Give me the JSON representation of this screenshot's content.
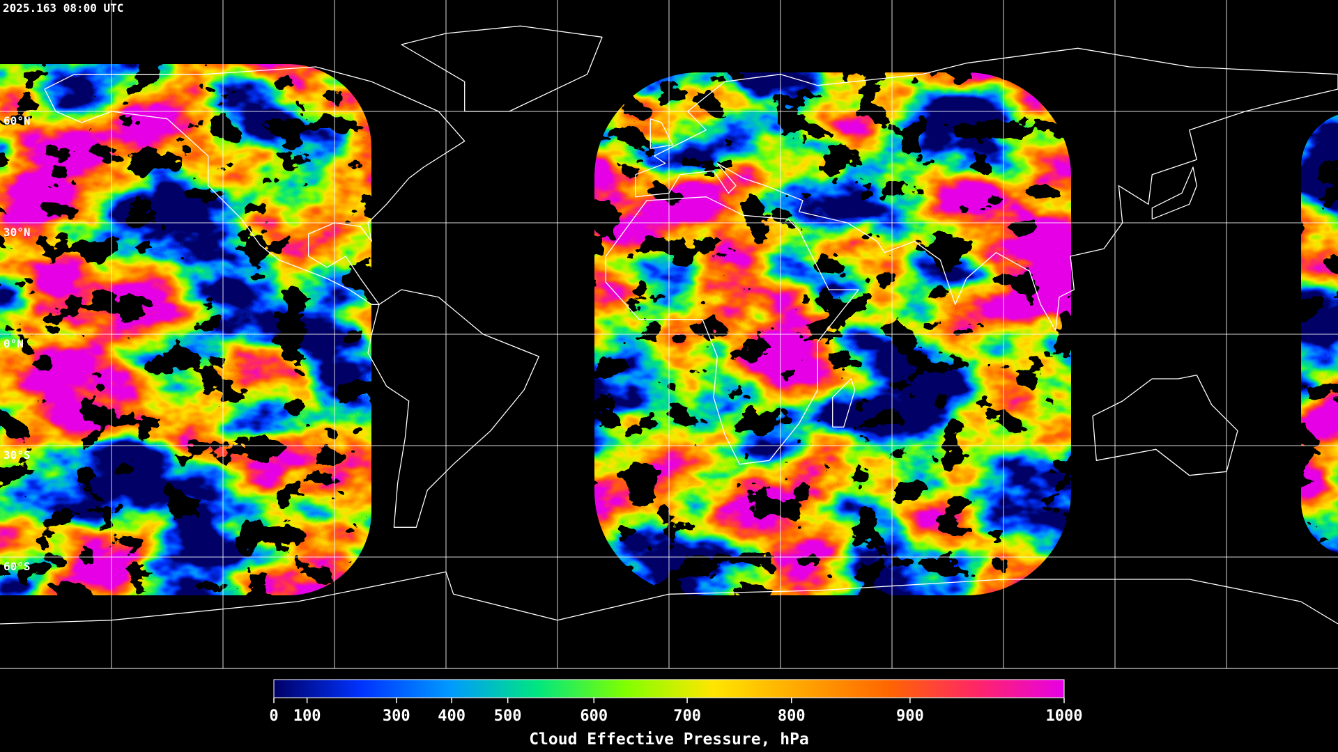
{
  "title": "2025.163 08:00 UTC",
  "lat_labels": [
    "60°N",
    "30°N",
    "0°N",
    "30°S",
    "60°S"
  ],
  "colorbar": {
    "label": "Cloud Effective Pressure, hPa",
    "ticks": [
      0,
      100,
      300,
      400,
      500,
      600,
      700,
      800,
      900,
      1000
    ],
    "colors": [
      "#000066",
      "#0033ff",
      "#0099ff",
      "#00e680",
      "#80ff00",
      "#ffe600",
      "#ffa600",
      "#ff6600",
      "#ff2666",
      "#e600e6"
    ]
  }
}
